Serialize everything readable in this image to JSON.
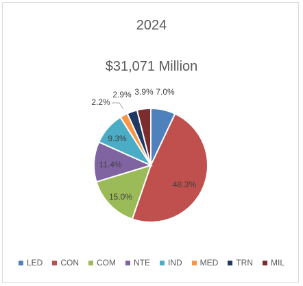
{
  "chart_data": {
    "type": "pie",
    "title": "2024",
    "subtitle": "$31,071 Million",
    "categories": [
      "LED",
      "CON",
      "COM",
      "NTE",
      "IND",
      "MED",
      "TRN",
      "MIL"
    ],
    "values": [
      7.0,
      48.3,
      15.0,
      11.4,
      9.3,
      2.2,
      2.9,
      3.9
    ],
    "labels": [
      "7.0%",
      "48.3%",
      "15.0%",
      "11.4%",
      "9.3%",
      "2.2%",
      "2.9%",
      "3.9%"
    ],
    "colors": [
      "#4f81bd",
      "#c0504d",
      "#9bbb59",
      "#8064a2",
      "#4bacc6",
      "#f79646",
      "#1f3864",
      "#7b2c2c"
    ],
    "legend_position": "bottom",
    "start_angle": "12 o'clock",
    "direction": "clockwise"
  }
}
